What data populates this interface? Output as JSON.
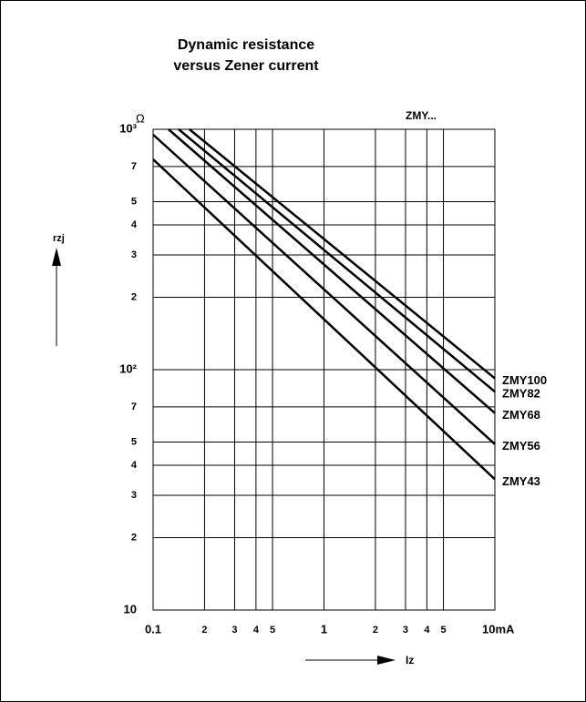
{
  "chart_data": {
    "type": "line",
    "title": [
      "Dynamic resistance",
      "versus Zener current"
    ],
    "y_unit": "Ω",
    "y_label": "rzj",
    "x_label": "Iz",
    "annotation": "ZMY...",
    "log_x": true,
    "log_y": true,
    "grid": true,
    "xlim": [
      0.1,
      10
    ],
    "ylim": [
      10,
      1000
    ],
    "xticks": [
      {
        "value": 0.1,
        "label": "0.1"
      },
      {
        "value": 0.2,
        "label": "2"
      },
      {
        "value": 0.3,
        "label": "3"
      },
      {
        "value": 0.4,
        "label": "4"
      },
      {
        "value": 0.5,
        "label": "5"
      },
      1,
      {
        "value": 2,
        "label": "2"
      },
      {
        "value": 3,
        "label": "3"
      },
      {
        "value": 4,
        "label": "4"
      },
      {
        "value": 5,
        "label": "5"
      },
      {
        "value": 10,
        "label": "10mA"
      }
    ],
    "yticks": [
      10,
      {
        "value": 20,
        "label": "2"
      },
      {
        "value": 30,
        "label": "3"
      },
      {
        "value": 40,
        "label": "4"
      },
      {
        "value": 50,
        "label": "5"
      },
      {
        "value": 70,
        "label": "7"
      },
      {
        "value": 100,
        "label": "10²"
      },
      {
        "value": 200,
        "label": "2"
      },
      {
        "value": 300,
        "label": "3"
      },
      {
        "value": 400,
        "label": "4"
      },
      {
        "value": 500,
        "label": "5"
      },
      {
        "value": 700,
        "label": "7"
      },
      {
        "value": 1000,
        "label": "10³"
      }
    ],
    "series": [
      {
        "name": "ZMY100",
        "color": "#000000",
        "x": [
          0.163,
          10
        ],
        "values": [
          1000,
          92
        ]
      },
      {
        "name": "ZMY82",
        "color": "#000000",
        "x": [
          0.141,
          10
        ],
        "values": [
          1000,
          81
        ]
      },
      {
        "name": "ZMY68",
        "color": "#000000",
        "x": [
          0.123,
          10
        ],
        "values": [
          1000,
          66
        ]
      },
      {
        "name": "ZMY56",
        "color": "#000000",
        "x": [
          0.1,
          10
        ],
        "values": [
          950,
          49
        ]
      },
      {
        "name": "ZMY43",
        "color": "#000000",
        "x": [
          0.1,
          10
        ],
        "values": [
          750,
          35
        ]
      }
    ]
  }
}
